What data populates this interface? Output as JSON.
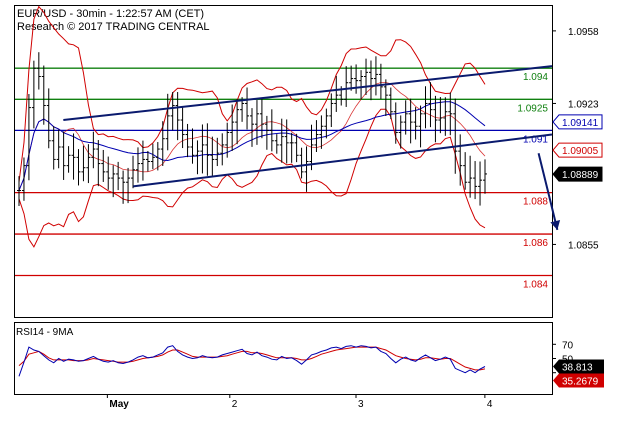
{
  "header": {
    "line1": "EUR/USD - 30min - 1:22:57 AM (CET)",
    "line2": "Research © 2017 TRADING CENTRAL"
  },
  "rsi_label": "RSI14 - 9MA",
  "chart_data": {
    "type": "candlestick",
    "instrument": "EUR/USD",
    "timeframe": "30min",
    "price_axis": {
      "ylim": [
        1.082,
        1.097
      ],
      "ticks": [
        "1.0958",
        "1.0923",
        "1.0889",
        "1.0855"
      ]
    },
    "x_axis_labels": [
      "May",
      "2",
      "3",
      "4"
    ],
    "horizontal_levels": [
      {
        "label": "1.094",
        "value": 1.094,
        "color": "#108010"
      },
      {
        "label": "1.0925",
        "value": 1.0925,
        "color": "#108010"
      },
      {
        "label": "1.091",
        "value": 1.091,
        "color": "#0000b0"
      },
      {
        "label": "1.088",
        "value": 1.088,
        "color": "#d00000"
      },
      {
        "label": "1.086",
        "value": 1.086,
        "color": "#d00000"
      },
      {
        "label": "1.084",
        "value": 1.084,
        "color": "#d00000"
      }
    ],
    "price_tags": [
      {
        "label": "1.09141",
        "value": 1.09141,
        "bg": "#ffffff",
        "fg": "#0000b0",
        "border": "#0000b0"
      },
      {
        "label": "1.09005",
        "value": 1.09005,
        "bg": "#ffffff",
        "fg": "#d00000",
        "border": "#d00000"
      },
      {
        "label": "1.08889",
        "value": 1.08889,
        "bg": "#000000",
        "fg": "#ffffff",
        "border": "#000000"
      }
    ],
    "channel": {
      "upper": [
        [
          0.09,
          1.0915
        ],
        [
          1.0,
          1.0941
        ]
      ],
      "lower": [
        [
          0.22,
          1.0883
        ],
        [
          1.0,
          1.0908
        ]
      ]
    },
    "forecast_arrow": [
      [
        0.975,
        1.0899
      ],
      [
        0.995,
        1.0878
      ],
      [
        1.01,
        1.0862
      ]
    ],
    "close": [
      1.0881,
      1.0893,
      1.0921,
      1.094,
      1.0936,
      1.0922,
      1.0905,
      1.0896,
      1.0902,
      1.0893,
      1.0898,
      1.0897,
      1.089,
      1.0892,
      1.0897,
      1.0901,
      1.0894,
      1.089,
      1.0887,
      1.0889,
      1.0887,
      1.0885,
      1.0887,
      1.0891,
      1.0894,
      1.0896,
      1.0895,
      1.0897,
      1.0901,
      1.0906,
      1.0917,
      1.0922,
      1.0915,
      1.0908,
      1.0902,
      1.0898,
      1.09,
      1.0903,
      1.0898,
      1.0896,
      1.0899,
      1.0903,
      1.0909,
      1.0914,
      1.092,
      1.0923,
      1.0917,
      1.0913,
      1.0918,
      1.0913,
      1.091,
      1.0905,
      1.0903,
      1.0907,
      1.0904,
      1.0904,
      1.0898,
      1.089,
      1.0895,
      1.0903,
      1.0908,
      1.0912,
      1.0917,
      1.0923,
      1.0927,
      1.0925,
      1.0933,
      1.0935,
      1.0934,
      1.0936,
      1.0938,
      1.0935,
      1.0937,
      1.0931,
      1.0927,
      1.0919,
      1.0909,
      1.0914,
      1.0918,
      1.0914,
      1.0912,
      1.0918,
      1.0923,
      1.092,
      1.0915,
      1.0916,
      1.0919,
      1.0918,
      1.09,
      1.0893,
      1.0885,
      1.0887,
      1.0883,
      1.0886,
      1.0889
    ],
    "rsi": {
      "ylim": [
        0,
        100
      ],
      "ticks": [
        "70",
        "50",
        "30"
      ],
      "tag_rsi": "38.813",
      "tag_ma": "35.2679",
      "rsi_values": [
        25,
        45,
        66,
        62,
        60,
        54,
        48,
        44,
        50,
        46,
        49,
        48,
        46,
        47,
        50,
        53,
        49,
        46,
        45,
        47,
        44,
        43,
        45,
        48,
        52,
        54,
        51,
        52,
        55,
        58,
        66,
        68,
        60,
        55,
        52,
        50,
        51,
        54,
        52,
        51,
        52,
        55,
        57,
        59,
        61,
        63,
        57,
        55,
        59,
        54,
        52,
        49,
        48,
        53,
        50,
        51,
        47,
        42,
        48,
        55,
        57,
        60,
        62,
        65,
        66,
        64,
        67,
        68,
        66,
        68,
        67,
        65,
        66,
        60,
        57,
        50,
        44,
        49,
        52,
        48,
        46,
        51,
        55,
        51,
        47,
        49,
        52,
        49,
        36,
        33,
        30,
        34,
        30,
        35,
        38.8
      ],
      "ma_values": [
        40,
        46,
        56,
        58,
        60,
        56,
        51,
        48,
        48,
        48,
        48,
        47,
        47,
        47,
        48,
        50,
        49,
        48,
        47,
        46,
        45,
        45,
        45,
        46,
        48,
        50,
        51,
        52,
        53,
        55,
        59,
        62,
        62,
        59,
        56,
        53,
        52,
        52,
        52,
        52,
        52,
        53,
        54,
        56,
        58,
        60,
        60,
        58,
        58,
        57,
        55,
        53,
        51,
        51,
        51,
        51,
        50,
        48,
        48,
        50,
        53,
        56,
        58,
        60,
        62,
        63,
        64,
        65,
        66,
        66,
        66,
        66,
        66,
        64,
        62,
        58,
        54,
        52,
        50,
        49,
        48,
        49,
        51,
        51,
        50,
        49,
        50,
        50,
        46,
        42,
        38,
        36,
        34,
        34,
        35.3
      ]
    }
  }
}
